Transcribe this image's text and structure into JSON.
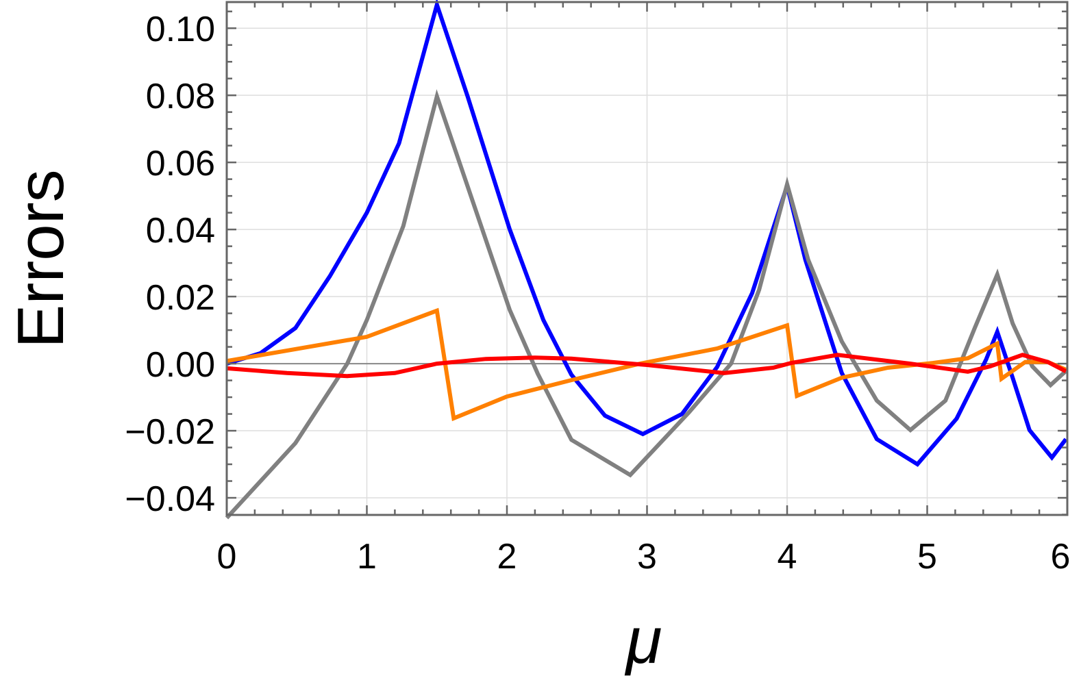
{
  "chart_data": {
    "type": "line",
    "title": "",
    "xlabel": "μ",
    "ylabel": "Errors",
    "xlim": [
      0,
      6
    ],
    "ylim": [
      -0.0451,
      0.1078
    ],
    "grid": true,
    "legend": "none",
    "x_ticks": [
      "0",
      "1",
      "2",
      "3",
      "4",
      "5",
      "6"
    ],
    "x_tick_values": [
      0,
      1,
      2,
      3,
      4,
      5,
      6
    ],
    "y_ticks": [
      "−0.04",
      "−0.02",
      "0.00",
      "0.02",
      "0.04",
      "0.06",
      "0.08",
      "0.10"
    ],
    "y_tick_values": [
      -0.04,
      -0.02,
      0,
      0.02,
      0.04,
      0.06,
      0.08,
      0.1
    ],
    "series": [
      {
        "color": "#0000ff",
        "x": [
          0,
          0.24,
          0.49,
          0.735,
          1.0,
          1.23,
          1.5,
          1.72,
          2.02,
          2.26,
          2.46,
          2.7,
          2.97,
          3.25,
          3.5,
          3.75,
          4.0,
          4.13,
          4.39,
          4.64,
          4.93,
          5.21,
          5.42,
          5.5,
          5.61,
          5.73,
          5.89,
          5.99
        ],
        "y": [
          0,
          0.0031,
          0.0106,
          0.026,
          0.045,
          0.0657,
          0.107,
          0.0796,
          0.04,
          0.013,
          -0.0033,
          -0.0155,
          -0.021,
          -0.015,
          -0.001,
          0.021,
          0.053,
          0.031,
          -0.0028,
          -0.0225,
          -0.03,
          -0.0164,
          0.0012,
          0.0095,
          -0.0042,
          -0.0198,
          -0.028,
          -0.0225
        ]
      },
      {
        "color": "#808080",
        "x": [
          0,
          0.49,
          0.86,
          1.0,
          1.26,
          1.5,
          1.72,
          2.02,
          2.22,
          2.46,
          2.88,
          3.3,
          3.6,
          3.8,
          4.0,
          4.15,
          4.39,
          4.64,
          4.88,
          5.13,
          5.34,
          5.5,
          5.61,
          5.75,
          5.88,
          5.99
        ],
        "y": [
          -0.046,
          -0.0237,
          0,
          0.013,
          0.041,
          0.0797,
          0.0528,
          0.016,
          -0.003,
          -0.0227,
          -0.0332,
          -0.0145,
          0,
          0.022,
          0.0535,
          0.031,
          0.0066,
          -0.011,
          -0.0198,
          -0.011,
          0.0107,
          0.0266,
          0.012,
          -0.0008,
          -0.0064,
          -0.0022
        ]
      },
      {
        "color": "#ff8000",
        "x": [
          0,
          1.0,
          1.5,
          1.62,
          2.0,
          2.46,
          2.95,
          3.5,
          4.0,
          4.07,
          4.39,
          4.72,
          5.04,
          5.29,
          5.5,
          5.53,
          5.7,
          5.86,
          5.99
        ],
        "y": [
          0.0008,
          0.008,
          0.0158,
          -0.0163,
          -0.0098,
          -0.0049,
          0,
          0.0045,
          0.0114,
          -0.0096,
          -0.0042,
          -0.0012,
          0.0002,
          0.0016,
          0.006,
          -0.0045,
          0.0005,
          0.0005,
          -0.0018
        ]
      },
      {
        "color": "#ff0000",
        "x": [
          0,
          0.43,
          0.86,
          1.2,
          1.5,
          1.85,
          2.2,
          2.46,
          3.0,
          3.55,
          3.9,
          4.03,
          4.36,
          4.88,
          5.29,
          5.45,
          5.68,
          5.86,
          5.99
        ],
        "y": [
          -0.0014,
          -0.0028,
          -0.0037,
          -0.0028,
          0,
          0.0014,
          0.0018,
          0.0015,
          -0.0004,
          -0.0028,
          -0.0012,
          0.0002,
          0.0026,
          0,
          -0.0024,
          -0.0008,
          0.0026,
          0.0005,
          -0.0023
        ]
      }
    ]
  }
}
